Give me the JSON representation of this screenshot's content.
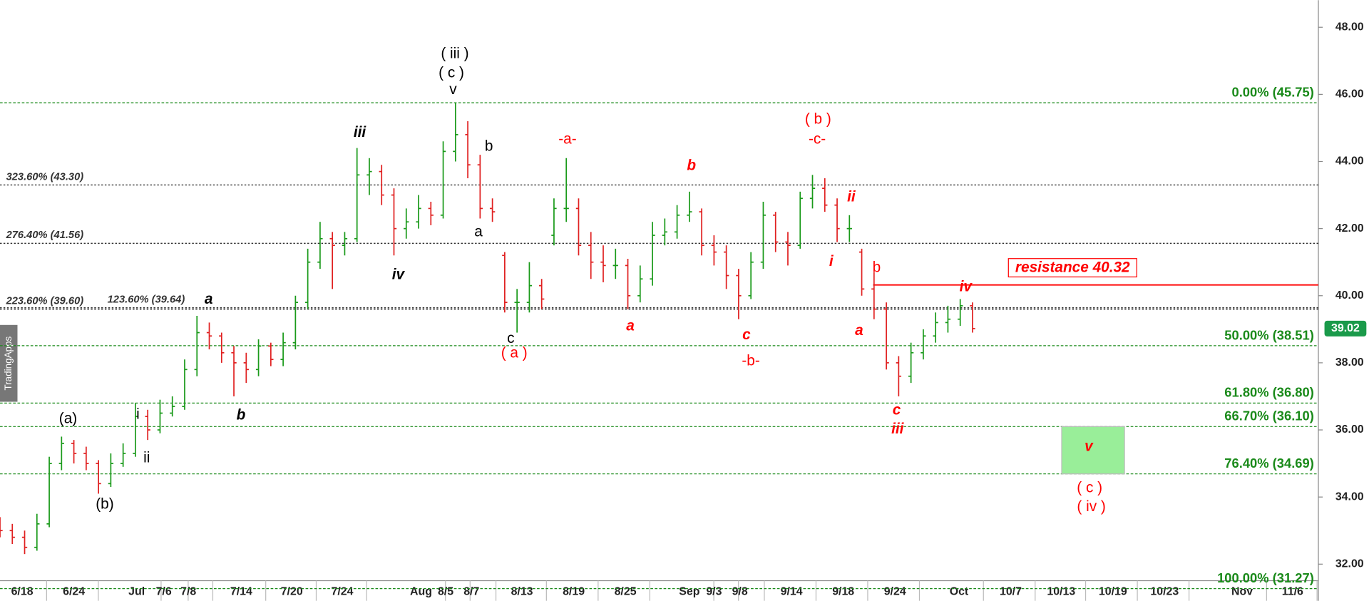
{
  "chart_data": {
    "type": "ohlc",
    "x": [
      0,
      1,
      2,
      3,
      4,
      5,
      6,
      7,
      8,
      9,
      10,
      11,
      12,
      13,
      14,
      15,
      16,
      17,
      18,
      19,
      20,
      21,
      22,
      23,
      24,
      25,
      26,
      27,
      28,
      29,
      30,
      31,
      32,
      33,
      34,
      35,
      36,
      37,
      38,
      39,
      40,
      41,
      42,
      43,
      44,
      45,
      46,
      47,
      48,
      49,
      50,
      51,
      52,
      53,
      54,
      55,
      56,
      57,
      58,
      59,
      60,
      61,
      62,
      63,
      64,
      65,
      66,
      67,
      68,
      69,
      70,
      71,
      72,
      73,
      74,
      75,
      76,
      77,
      78,
      79
    ],
    "open": [
      33.2,
      33.0,
      32.8,
      32.5,
      33.2,
      35.0,
      35.6,
      35.3,
      35.0,
      34.4,
      35.0,
      35.3,
      36.4,
      36.0,
      36.5,
      36.7,
      37.8,
      38.9,
      38.8,
      38.3,
      38.0,
      37.8,
      38.5,
      38.1,
      38.6,
      39.8,
      41.0,
      41.7,
      41.5,
      41.7,
      43.6,
      43.7,
      43.0,
      42.0,
      42.2,
      42.6,
      42.4,
      44.3,
      44.8,
      43.9,
      42.6,
      41.2,
      39.8,
      39.8,
      40.3,
      41.8,
      42.6,
      42.6,
      41.5,
      41.0,
      40.9,
      40.9,
      40.0,
      40.5,
      41.8,
      41.9,
      42.4,
      42.5,
      41.5,
      41.3,
      40.6,
      40.0,
      41.0,
      42.4,
      41.6,
      41.5,
      42.9,
      43.2,
      42.7,
      42.0,
      41.3,
      40.2,
      39.6,
      38.0,
      37.6,
      38.3,
      38.8,
      39.2,
      39.3,
      39.7
    ],
    "high": [
      33.4,
      33.2,
      33.0,
      33.5,
      35.2,
      35.8,
      35.7,
      35.5,
      35.1,
      35.3,
      35.6,
      36.8,
      36.6,
      36.9,
      37.0,
      38.1,
      39.4,
      39.2,
      38.9,
      38.5,
      38.3,
      38.7,
      38.6,
      38.9,
      40.0,
      41.4,
      42.2,
      41.9,
      41.9,
      44.4,
      44.1,
      43.9,
      43.2,
      42.6,
      43.0,
      42.8,
      44.6,
      45.75,
      45.2,
      44.2,
      42.9,
      41.3,
      40.2,
      41.0,
      40.5,
      42.9,
      44.1,
      42.9,
      41.9,
      41.5,
      41.4,
      41.1,
      40.9,
      42.2,
      42.3,
      42.7,
      43.1,
      42.6,
      41.8,
      41.5,
      40.8,
      41.3,
      42.8,
      42.5,
      41.9,
      43.1,
      43.6,
      43.5,
      42.9,
      42.4,
      41.4,
      40.7,
      39.8,
      38.2,
      38.6,
      39.0,
      39.5,
      39.7,
      39.9,
      39.8
    ],
    "low": [
      32.8,
      32.6,
      32.3,
      32.4,
      33.1,
      34.8,
      35.0,
      34.8,
      34.1,
      34.3,
      34.9,
      35.2,
      35.7,
      35.9,
      36.4,
      36.6,
      37.6,
      38.4,
      38.0,
      37.0,
      37.4,
      37.6,
      37.9,
      37.9,
      38.4,
      39.6,
      40.8,
      40.2,
      41.2,
      41.6,
      43.0,
      42.7,
      41.2,
      41.7,
      42.0,
      42.1,
      42.3,
      44.0,
      43.5,
      42.3,
      42.2,
      39.5,
      38.9,
      39.5,
      39.6,
      41.5,
      42.2,
      41.2,
      40.5,
      40.4,
      40.5,
      39.6,
      39.8,
      40.3,
      41.5,
      41.7,
      42.2,
      41.2,
      40.9,
      40.2,
      39.3,
      39.9,
      40.8,
      41.3,
      40.9,
      41.4,
      42.6,
      42.5,
      41.6,
      41.6,
      40.0,
      39.3,
      37.8,
      37.0,
      37.4,
      38.1,
      38.6,
      38.9,
      39.1,
      38.9
    ],
    "close": [
      33.0,
      32.8,
      32.5,
      33.2,
      35.0,
      35.6,
      35.3,
      35.0,
      34.4,
      35.0,
      35.3,
      36.4,
      36.0,
      36.5,
      36.7,
      37.8,
      38.9,
      38.8,
      38.3,
      38.0,
      37.8,
      38.5,
      38.1,
      38.6,
      39.8,
      41.0,
      41.7,
      41.5,
      41.7,
      43.6,
      43.7,
      43.0,
      42.0,
      42.2,
      42.6,
      42.4,
      44.3,
      44.8,
      43.9,
      42.6,
      42.5,
      39.8,
      39.8,
      40.3,
      39.9,
      42.6,
      42.6,
      41.5,
      41.0,
      40.9,
      40.9,
      40.0,
      40.5,
      41.8,
      41.9,
      42.4,
      42.5,
      41.5,
      41.3,
      40.6,
      40.0,
      41.0,
      42.4,
      41.6,
      41.5,
      42.9,
      43.2,
      42.7,
      42.0,
      42.0,
      40.2,
      39.6,
      38.0,
      37.6,
      38.3,
      38.8,
      39.2,
      39.3,
      39.7,
      39.02
    ],
    "up_color": "#1a9a1a",
    "down_color": "#e02020",
    "xlim": [
      0,
      107
    ],
    "xticks": [
      {
        "value": 1.8,
        "label": "6/18"
      },
      {
        "value": 6,
        "label": "6/24"
      },
      {
        "value": 11.1,
        "label": "Jul"
      },
      {
        "value": 13.3,
        "label": "7/6"
      },
      {
        "value": 15.3,
        "label": "7/8"
      },
      {
        "value": 19.6,
        "label": "7/14"
      },
      {
        "value": 23.7,
        "label": "7/20"
      },
      {
        "value": 27.8,
        "label": "7/24"
      },
      {
        "value": 34.2,
        "label": "Aug"
      },
      {
        "value": 36.2,
        "label": "8/5"
      },
      {
        "value": 38.3,
        "label": "8/7"
      },
      {
        "value": 42.4,
        "label": "8/13"
      },
      {
        "value": 46.6,
        "label": "8/19"
      },
      {
        "value": 50.8,
        "label": "8/25"
      },
      {
        "value": 56,
        "label": "Sep"
      },
      {
        "value": 58,
        "label": "9/3"
      },
      {
        "value": 60.1,
        "label": "9/8"
      },
      {
        "value": 64.3,
        "label": "9/14"
      },
      {
        "value": 68.5,
        "label": "9/18"
      },
      {
        "value": 72.7,
        "label": "9/24"
      },
      {
        "value": 77.9,
        "label": "Oct"
      },
      {
        "value": 82.1,
        "label": "10/7"
      },
      {
        "value": 86.2,
        "label": "10/13"
      },
      {
        "value": 90.4,
        "label": "10/19"
      },
      {
        "value": 94.6,
        "label": "10/23"
      },
      {
        "value": 100.9,
        "label": "Nov"
      },
      {
        "value": 105,
        "label": "11/6"
      }
    ],
    "ylim": [
      32,
      48
    ],
    "yticks": [
      {
        "value": 32,
        "label": "32.00"
      },
      {
        "value": 34,
        "label": "34.00"
      },
      {
        "value": 36,
        "label": "36.00"
      },
      {
        "value": 38,
        "label": "38.00"
      },
      {
        "value": 40,
        "label": "40.00"
      },
      {
        "value": 42,
        "label": "42.00"
      },
      {
        "value": 44,
        "label": "44.00"
      },
      {
        "value": 46,
        "label": "46.00"
      },
      {
        "value": 48,
        "label": "48.00"
      }
    ],
    "levels": [
      {
        "label": "0.00% (45.75)",
        "value": 45.75,
        "color": "#1a8a1a",
        "side": "right"
      },
      {
        "label": "50.00% (38.51)",
        "value": 38.51,
        "color": "#1a8a1a",
        "side": "right"
      },
      {
        "label": "61.80% (36.80)",
        "value": 36.8,
        "color": "#1a8a1a",
        "side": "right"
      },
      {
        "label": "66.70% (36.10)",
        "value": 36.1,
        "color": "#1a8a1a",
        "side": "right"
      },
      {
        "label": "76.40% (34.69)",
        "value": 34.69,
        "color": "#1a8a1a",
        "side": "right"
      },
      {
        "label": "100.00% (31.27)",
        "value": 31.27,
        "color": "#1a8a1a",
        "side": "right"
      },
      {
        "label": "323.60% (43.30)",
        "value": 43.3,
        "color": "#333333",
        "side": "left"
      },
      {
        "label": "276.40% (41.56)",
        "value": 41.56,
        "color": "#333333",
        "side": "left"
      },
      {
        "label": "223.60% (39.60)",
        "value": 39.6,
        "color": "#333333",
        "side": "left"
      },
      {
        "label": "123.60% (39.64)",
        "value": 39.64,
        "color": "#333333",
        "side": "mid"
      }
    ],
    "resistance": {
      "label": "resistance 40.32",
      "value": 40.32,
      "color": "#ff0000"
    },
    "target_zone": {
      "high": 36.1,
      "low": 34.69,
      "color": "#99ee99"
    },
    "last_price": {
      "value": 39.02,
      "color": "#1a9a4a"
    },
    "watermark": "TradingApps",
    "annotations": [
      {
        "text": "( iii )",
        "color": "#000000"
      },
      {
        "text": "( c )",
        "color": "#000000"
      },
      {
        "text": "v",
        "color": "#000000"
      },
      {
        "text": "iii",
        "color": "#000000",
        "italic": true
      },
      {
        "text": "b",
        "color": "#000000"
      },
      {
        "text": "a",
        "color": "#000000"
      },
      {
        "text": "iv",
        "color": "#000000",
        "italic": true
      },
      {
        "text": "a",
        "color": "#000000",
        "italic": true
      },
      {
        "text": "(a)",
        "color": "#000000"
      },
      {
        "text": "i",
        "color": "#000000"
      },
      {
        "text": "ii",
        "color": "#000000"
      },
      {
        "text": "(b)",
        "color": "#000000"
      },
      {
        "text": "b",
        "color": "#000000",
        "italic": true
      },
      {
        "text": "c",
        "color": "#000000"
      },
      {
        "text": "( a )",
        "color": "#ff0000"
      },
      {
        "text": "-a-",
        "color": "#ff0000"
      },
      {
        "text": "b",
        "color": "#ff0000",
        "italic": true
      },
      {
        "text": "a",
        "color": "#ff0000",
        "italic": true
      },
      {
        "text": "c",
        "color": "#ff0000",
        "italic": true
      },
      {
        "text": "-b-",
        "color": "#ff0000"
      },
      {
        "text": "( b )",
        "color": "#ff0000"
      },
      {
        "text": "-c-",
        "color": "#ff0000"
      },
      {
        "text": "ii",
        "color": "#ff0000",
        "italic": true
      },
      {
        "text": "i",
        "color": "#ff0000",
        "italic": true
      },
      {
        "text": "b",
        "color": "#ff0000"
      },
      {
        "text": "a",
        "color": "#ff0000",
        "italic": true
      },
      {
        "text": "iv",
        "color": "#ff0000",
        "italic": true
      },
      {
        "text": "c",
        "color": "#ff0000",
        "italic": true
      },
      {
        "text": "iii",
        "color": "#ff0000",
        "italic": true
      },
      {
        "text": "v",
        "color": "#ff0000",
        "italic": true
      },
      {
        "text": "( c )",
        "color": "#ff0000"
      },
      {
        "text": "( iv )",
        "color": "#ff0000"
      }
    ]
  }
}
